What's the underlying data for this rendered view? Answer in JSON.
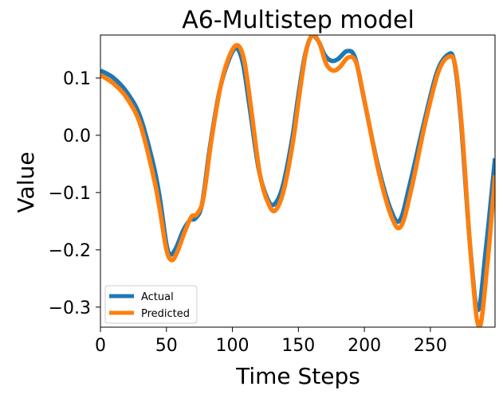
{
  "chart_data": {
    "type": "line",
    "title": "A6-Multistep model",
    "xlabel": "Time Steps",
    "ylabel": "Value",
    "xlim": [
      0,
      299
    ],
    "ylim": [
      -0.335,
      0.175
    ],
    "xticks": [
      0,
      50,
      100,
      150,
      200,
      250
    ],
    "xtick_labels": [
      "0",
      "50",
      "100",
      "150",
      "200",
      "250"
    ],
    "yticks": [
      -0.3,
      -0.2,
      -0.1,
      0.0,
      0.1
    ],
    "ytick_labels": [
      "−0.3",
      "−0.2",
      "−0.1",
      "0.0",
      "0.1"
    ],
    "grid": false,
    "legend_position": "lower-left",
    "series": [
      {
        "name": "Actual",
        "color": "#1f77b4",
        "points": [
          [
            0,
            0.113
          ],
          [
            10,
            0.1
          ],
          [
            20,
            0.075
          ],
          [
            30,
            0.033
          ],
          [
            40,
            -0.05
          ],
          [
            45,
            -0.11
          ],
          [
            50,
            -0.19
          ],
          [
            53,
            -0.208
          ],
          [
            57,
            -0.198
          ],
          [
            63,
            -0.165
          ],
          [
            68,
            -0.148
          ],
          [
            72,
            -0.145
          ],
          [
            77,
            -0.12
          ],
          [
            83,
            -0.02
          ],
          [
            90,
            0.075
          ],
          [
            97,
            0.13
          ],
          [
            103,
            0.152
          ],
          [
            108,
            0.125
          ],
          [
            113,
            0.05
          ],
          [
            120,
            -0.06
          ],
          [
            127,
            -0.113
          ],
          [
            132,
            -0.12
          ],
          [
            138,
            -0.09
          ],
          [
            145,
            -0.01
          ],
          [
            150,
            0.07
          ],
          [
            155,
            0.14
          ],
          [
            160,
            0.173
          ],
          [
            165,
            0.165
          ],
          [
            170,
            0.14
          ],
          [
            175,
            0.13
          ],
          [
            180,
            0.133
          ],
          [
            187,
            0.147
          ],
          [
            193,
            0.135
          ],
          [
            200,
            0.06
          ],
          [
            210,
            -0.05
          ],
          [
            220,
            -0.13
          ],
          [
            227,
            -0.148
          ],
          [
            235,
            -0.08
          ],
          [
            245,
            0.02
          ],
          [
            255,
            0.11
          ],
          [
            263,
            0.14
          ],
          [
            268,
            0.13
          ],
          [
            273,
            0.03
          ],
          [
            280,
            -0.19
          ],
          [
            286,
            -0.305
          ],
          [
            292,
            -0.2
          ],
          [
            299,
            -0.04
          ]
        ]
      },
      {
        "name": "Predicted",
        "color": "#ff7f0e",
        "points": [
          [
            0,
            0.105
          ],
          [
            10,
            0.09
          ],
          [
            20,
            0.065
          ],
          [
            30,
            0.02
          ],
          [
            40,
            -0.07
          ],
          [
            45,
            -0.13
          ],
          [
            50,
            -0.2
          ],
          [
            54,
            -0.218
          ],
          [
            58,
            -0.205
          ],
          [
            64,
            -0.168
          ],
          [
            69,
            -0.142
          ],
          [
            73,
            -0.138
          ],
          [
            78,
            -0.11
          ],
          [
            84,
            -0.01
          ],
          [
            91,
            0.085
          ],
          [
            98,
            0.14
          ],
          [
            104,
            0.157
          ],
          [
            109,
            0.13
          ],
          [
            114,
            0.05
          ],
          [
            121,
            -0.07
          ],
          [
            128,
            -0.123
          ],
          [
            133,
            -0.13
          ],
          [
            139,
            -0.095
          ],
          [
            146,
            -0.01
          ],
          [
            151,
            0.075
          ],
          [
            156,
            0.148
          ],
          [
            161,
            0.175
          ],
          [
            166,
            0.16
          ],
          [
            171,
            0.125
          ],
          [
            176,
            0.113
          ],
          [
            181,
            0.118
          ],
          [
            188,
            0.136
          ],
          [
            194,
            0.125
          ],
          [
            201,
            0.05
          ],
          [
            211,
            -0.065
          ],
          [
            221,
            -0.145
          ],
          [
            228,
            -0.158
          ],
          [
            236,
            -0.09
          ],
          [
            246,
            0.02
          ],
          [
            256,
            0.11
          ],
          [
            264,
            0.137
          ],
          [
            269,
            0.12
          ],
          [
            274,
            0.01
          ],
          [
            281,
            -0.22
          ],
          [
            287,
            -0.335
          ],
          [
            293,
            -0.23
          ],
          [
            299,
            -0.07
          ]
        ]
      }
    ]
  }
}
